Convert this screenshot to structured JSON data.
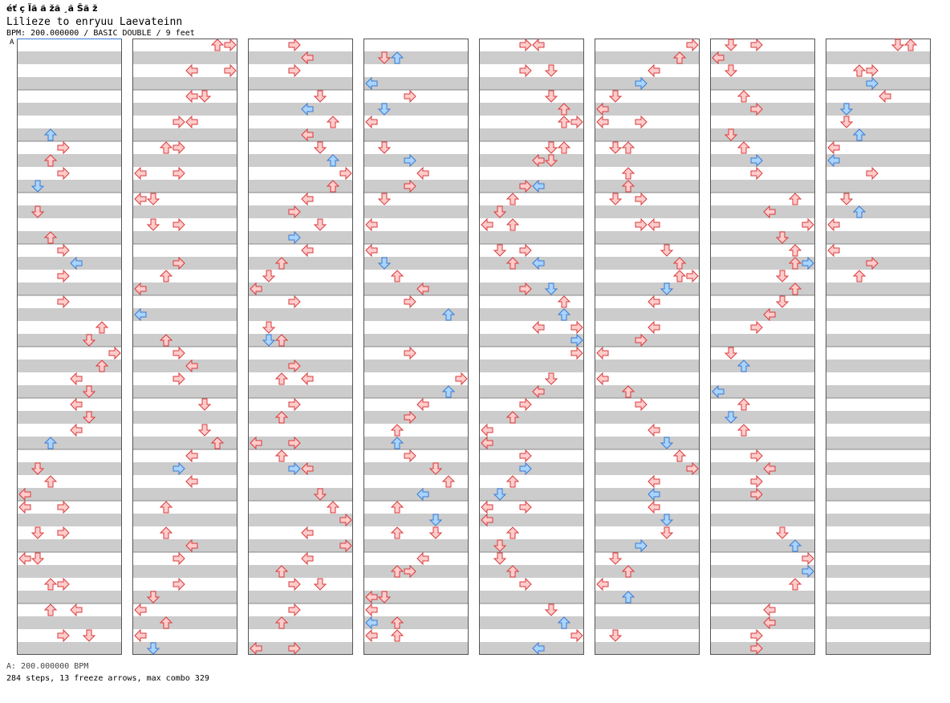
{
  "title": "éť ç Ĩã  ă žă ¸ă Šă ž",
  "subtitle": "Lilieze to enryuu Laevateinn",
  "meta": "BPM: 200.000000 / BASIC DOUBLE / 9 feet",
  "section_label": "A",
  "footer": {
    "bpm_line": "A: 200.000000 BPM",
    "stats_line": "284 steps, 13 freeze arrows, max combo 329"
  },
  "colors": {
    "page_bg": "#ffffff",
    "stripe": "#cccccc",
    "column_border": "#555555",
    "measure_line": "#888888",
    "note_red_fill": "#ffcccc",
    "note_red_stroke": "#d83a3a",
    "note_blue_fill": "#a8d4ff",
    "note_blue_stroke": "#3a7ad0",
    "freeze_fill": "#ccffcc",
    "freeze_stroke": "#2a9a2a",
    "section_line": "#3a7ad0"
  },
  "chart_data": {
    "type": "step-chart",
    "bpm": 200,
    "difficulty": "BASIC DOUBLE",
    "feet": 9,
    "panels": 8,
    "measures_per_panel": 12,
    "lanes": [
      "P1-Left",
      "P1-Down",
      "P1-Up",
      "P1-Right",
      "P2-Left",
      "P2-Down",
      "P2-Up",
      "P2-Right"
    ],
    "note_rows_per_measure": 4,
    "panel_step_data": [
      [
        [
          7,
          2
        ],
        [
          8,
          3
        ],
        [
          9,
          2
        ],
        [
          10,
          3
        ],
        [
          11,
          1
        ],
        [
          13,
          1
        ],
        [
          15,
          2
        ],
        [
          16,
          3
        ],
        [
          17,
          4
        ],
        [
          18,
          3
        ],
        [
          20,
          3
        ],
        [
          22,
          6
        ],
        [
          23,
          5
        ],
        [
          24,
          7
        ],
        [
          25,
          6
        ],
        [
          26,
          4
        ],
        [
          27,
          5
        ],
        [
          28,
          4
        ],
        [
          29,
          5
        ],
        [
          30,
          4
        ],
        [
          31,
          2
        ],
        [
          33,
          1
        ],
        [
          34,
          2
        ],
        [
          35,
          0
        ],
        [
          36,
          0
        ],
        [
          36,
          3
        ],
        [
          38,
          1
        ],
        [
          38,
          3
        ],
        [
          40,
          0
        ],
        [
          40,
          1
        ],
        [
          42,
          2
        ],
        [
          42,
          3
        ],
        [
          44,
          2
        ],
        [
          44,
          4
        ],
        [
          46,
          3
        ],
        [
          46,
          5
        ]
      ],
      [
        [
          0,
          6
        ],
        [
          0,
          7
        ],
        [
          2,
          4
        ],
        [
          2,
          7
        ],
        [
          4,
          4
        ],
        [
          4,
          5
        ],
        [
          6,
          3
        ],
        [
          6,
          4
        ],
        [
          8,
          2
        ],
        [
          8,
          3
        ],
        [
          10,
          0
        ],
        [
          10,
          3
        ],
        [
          12,
          0
        ],
        [
          12,
          1
        ],
        [
          14,
          1
        ],
        [
          14,
          3
        ],
        [
          17,
          3
        ],
        [
          18,
          2
        ],
        [
          19,
          0
        ],
        [
          21,
          0
        ],
        [
          23,
          2
        ],
        [
          24,
          3
        ],
        [
          25,
          4
        ],
        [
          26,
          3
        ],
        [
          28,
          5
        ],
        [
          30,
          5
        ],
        [
          31,
          6
        ],
        [
          32,
          4
        ],
        [
          33,
          3
        ],
        [
          34,
          4
        ],
        [
          36,
          2
        ],
        [
          38,
          2
        ],
        [
          39,
          4
        ],
        [
          40,
          3
        ],
        [
          42,
          3
        ],
        [
          43,
          1
        ],
        [
          44,
          0
        ],
        [
          45,
          2
        ],
        [
          46,
          0
        ],
        [
          47,
          1
        ]
      ],
      [
        [
          0,
          3
        ],
        [
          1,
          4
        ],
        [
          2,
          3
        ],
        [
          4,
          5
        ],
        [
          5,
          4
        ],
        [
          6,
          6
        ],
        [
          7,
          4
        ],
        [
          8,
          5
        ],
        [
          9,
          6
        ],
        [
          10,
          7
        ],
        [
          11,
          6
        ],
        [
          12,
          4
        ],
        [
          13,
          3
        ],
        [
          14,
          5
        ],
        [
          15,
          3
        ],
        [
          16,
          4
        ],
        [
          17,
          2
        ],
        [
          18,
          1
        ],
        [
          19,
          0
        ],
        [
          20,
          3
        ],
        [
          22,
          1
        ],
        [
          23,
          1
        ],
        [
          23,
          2
        ],
        [
          25,
          3
        ],
        [
          26,
          2
        ],
        [
          26,
          4
        ],
        [
          28,
          3
        ],
        [
          29,
          2
        ],
        [
          31,
          0
        ],
        [
          31,
          3
        ],
        [
          32,
          2
        ],
        [
          33,
          3
        ],
        [
          33,
          4
        ],
        [
          35,
          5
        ],
        [
          36,
          6
        ],
        [
          37,
          7
        ],
        [
          38,
          4
        ],
        [
          39,
          7
        ],
        [
          40,
          4
        ],
        [
          41,
          2
        ],
        [
          42,
          3
        ],
        [
          42,
          5
        ],
        [
          44,
          3
        ],
        [
          45,
          2
        ],
        [
          47,
          0
        ],
        [
          47,
          3
        ]
      ],
      [
        [
          1,
          1
        ],
        [
          1,
          2
        ],
        [
          3,
          0
        ],
        [
          4,
          3
        ],
        [
          5,
          1
        ],
        [
          6,
          0
        ],
        [
          8,
          1
        ],
        [
          9,
          3
        ],
        [
          10,
          4
        ],
        [
          11,
          3
        ],
        [
          12,
          1
        ],
        [
          14,
          0
        ],
        [
          16,
          0
        ],
        [
          17,
          1
        ],
        [
          18,
          2
        ],
        [
          19,
          4
        ],
        [
          20,
          3
        ],
        [
          21,
          6
        ],
        [
          24,
          3
        ],
        [
          26,
          7
        ],
        [
          27,
          6
        ],
        [
          28,
          4
        ],
        [
          29,
          3
        ],
        [
          30,
          2
        ],
        [
          31,
          2
        ],
        [
          32,
          3
        ],
        [
          33,
          5
        ],
        [
          34,
          6
        ],
        [
          35,
          4
        ],
        [
          36,
          2
        ],
        [
          37,
          5
        ],
        [
          38,
          2
        ],
        [
          38,
          5
        ],
        [
          40,
          4
        ],
        [
          41,
          2
        ],
        [
          41,
          3
        ],
        [
          43,
          0
        ],
        [
          43,
          1
        ],
        [
          44,
          0
        ],
        [
          45,
          0
        ],
        [
          45,
          2
        ],
        [
          46,
          0
        ],
        [
          46,
          2
        ]
      ],
      [
        [
          0,
          3
        ],
        [
          0,
          4
        ],
        [
          2,
          3
        ],
        [
          2,
          5
        ],
        [
          4,
          5
        ],
        [
          5,
          6
        ],
        [
          6,
          6
        ],
        [
          6,
          7
        ],
        [
          8,
          5
        ],
        [
          8,
          6
        ],
        [
          9,
          4
        ],
        [
          9,
          5
        ],
        [
          11,
          3
        ],
        [
          11,
          4
        ],
        [
          12,
          2
        ],
        [
          13,
          1
        ],
        [
          14,
          0
        ],
        [
          14,
          2
        ],
        [
          16,
          1
        ],
        [
          16,
          3
        ],
        [
          17,
          2
        ],
        [
          17,
          4
        ],
        [
          19,
          3
        ],
        [
          19,
          5
        ],
        [
          20,
          6
        ],
        [
          21,
          6
        ],
        [
          22,
          4
        ],
        [
          22,
          7
        ],
        [
          23,
          7
        ],
        [
          24,
          7
        ],
        [
          26,
          5
        ],
        [
          27,
          4
        ],
        [
          28,
          3
        ],
        [
          29,
          2
        ],
        [
          30,
          0
        ],
        [
          31,
          0
        ],
        [
          32,
          3
        ],
        [
          33,
          3
        ],
        [
          34,
          2
        ],
        [
          35,
          1
        ],
        [
          36,
          0
        ],
        [
          36,
          3
        ],
        [
          37,
          0
        ],
        [
          38,
          2
        ],
        [
          39,
          1
        ],
        [
          40,
          1
        ],
        [
          41,
          2
        ],
        [
          42,
          3
        ],
        [
          44,
          5
        ],
        [
          45,
          6
        ],
        [
          46,
          7
        ],
        [
          47,
          4
        ]
      ],
      [
        [
          0,
          7
        ],
        [
          1,
          6
        ],
        [
          2,
          4
        ],
        [
          3,
          3
        ],
        [
          4,
          1
        ],
        [
          5,
          0
        ],
        [
          6,
          0
        ],
        [
          6,
          3
        ],
        [
          8,
          1
        ],
        [
          8,
          2
        ],
        [
          10,
          2
        ],
        [
          11,
          2
        ],
        [
          12,
          1
        ],
        [
          12,
          3
        ],
        [
          14,
          3
        ],
        [
          14,
          4
        ],
        [
          16,
          5
        ],
        [
          17,
          6
        ],
        [
          18,
          6
        ],
        [
          18,
          7
        ],
        [
          19,
          5
        ],
        [
          20,
          4
        ],
        [
          22,
          4
        ],
        [
          23,
          3
        ],
        [
          24,
          0
        ],
        [
          26,
          0
        ],
        [
          27,
          2
        ],
        [
          28,
          3
        ],
        [
          30,
          4
        ],
        [
          31,
          5
        ],
        [
          32,
          6
        ],
        [
          33,
          7
        ],
        [
          34,
          4
        ],
        [
          35,
          4
        ],
        [
          36,
          4
        ],
        [
          37,
          5
        ],
        [
          38,
          5
        ],
        [
          39,
          3
        ],
        [
          40,
          1
        ],
        [
          41,
          2
        ],
        [
          42,
          0
        ],
        [
          43,
          2
        ],
        [
          46,
          1
        ]
      ],
      [
        [
          0,
          1
        ],
        [
          0,
          3
        ],
        [
          1,
          0
        ],
        [
          2,
          1
        ],
        [
          4,
          2
        ],
        [
          5,
          3
        ],
        [
          7,
          1
        ],
        [
          8,
          2
        ],
        [
          9,
          3
        ],
        [
          10,
          3
        ],
        [
          12,
          6
        ],
        [
          13,
          4
        ],
        [
          14,
          7
        ],
        [
          15,
          5
        ],
        [
          16,
          6
        ],
        [
          17,
          6
        ],
        [
          17,
          7
        ],
        [
          18,
          5
        ],
        [
          19,
          6
        ],
        [
          20,
          5
        ],
        [
          21,
          4
        ],
        [
          22,
          3
        ],
        [
          24,
          1
        ],
        [
          25,
          2
        ],
        [
          27,
          0
        ],
        [
          28,
          2
        ],
        [
          29,
          1
        ],
        [
          30,
          2
        ],
        [
          32,
          3
        ],
        [
          33,
          4
        ],
        [
          34,
          3
        ],
        [
          35,
          3
        ],
        [
          38,
          5
        ],
        [
          39,
          6
        ],
        [
          40,
          7
        ],
        [
          41,
          7
        ],
        [
          42,
          6
        ],
        [
          44,
          4
        ],
        [
          45,
          4
        ],
        [
          46,
          3
        ],
        [
          47,
          3
        ]
      ],
      [
        [
          0,
          5
        ],
        [
          0,
          6
        ],
        [
          2,
          2
        ],
        [
          2,
          3
        ],
        [
          3,
          3
        ],
        [
          4,
          4
        ],
        [
          5,
          1
        ],
        [
          6,
          1
        ],
        [
          7,
          2
        ],
        [
          8,
          0
        ],
        [
          9,
          0
        ],
        [
          10,
          3
        ],
        [
          12,
          1
        ],
        [
          13,
          2
        ],
        [
          14,
          0
        ],
        [
          16,
          0
        ],
        [
          17,
          3
        ],
        [
          18,
          2
        ]
      ]
    ],
    "freeze_arrows": 13,
    "steps": 284,
    "max_combo": 329
  }
}
